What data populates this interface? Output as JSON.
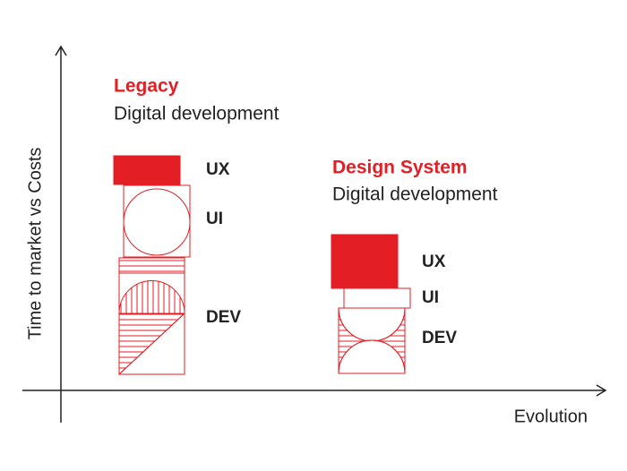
{
  "y_axis_label": "Time to market vs Costs",
  "x_axis_label": "Evolution",
  "groups": [
    {
      "title": "Legacy",
      "subtitle": "Digital development",
      "layers": [
        "UX",
        "UI",
        "DEV"
      ]
    },
    {
      "title": "Design System",
      "subtitle": "Digital development",
      "layers": [
        "UX",
        "UI",
        "DEV"
      ]
    }
  ]
}
